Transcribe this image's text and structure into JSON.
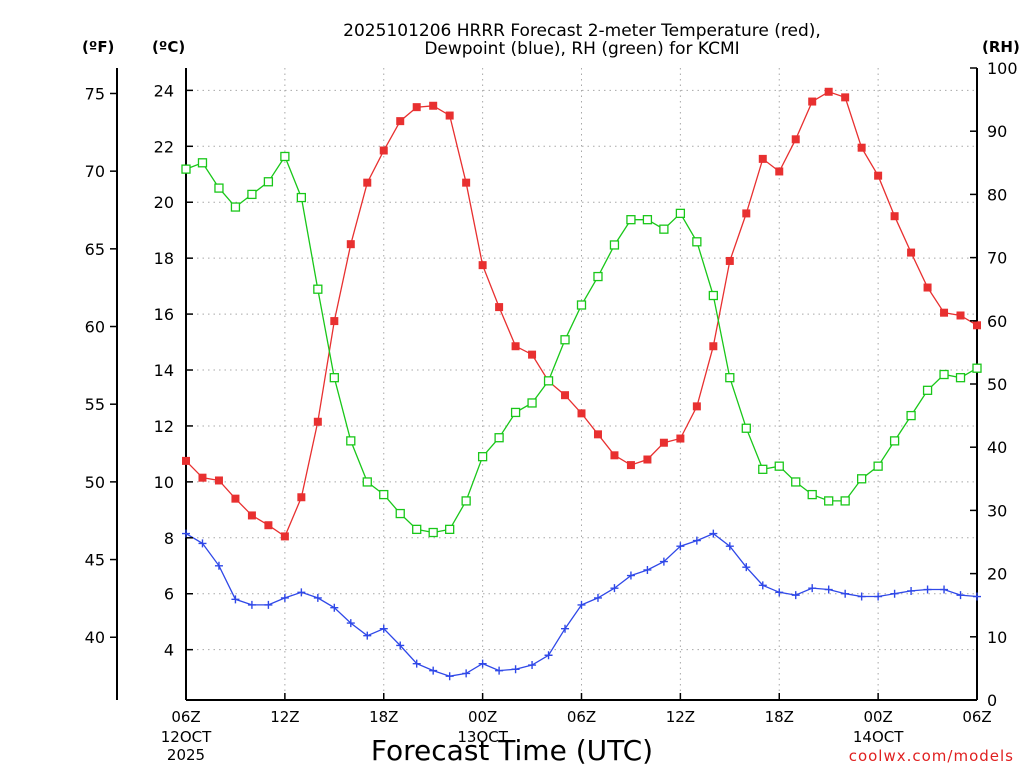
{
  "chart_data": {
    "type": "line",
    "title": [
      "2025101206 HRRR Forecast 2-meter Temperature (red),",
      "Dewpoint (blue), RH (green) for KCMI"
    ],
    "xlabel": "Forecast Time (UTC)",
    "watermark": "coolwx.com/models",
    "units": {
      "fahrenheit": "(ºF)",
      "celsius": "(ºC)",
      "rh": "(RH)"
    },
    "x_range_hours": [
      0,
      48
    ],
    "x_ticks": [
      {
        "hour": 0,
        "label": "06Z",
        "date_line1": "12OCT",
        "date_line2": "2025"
      },
      {
        "hour": 6,
        "label": "12Z"
      },
      {
        "hour": 12,
        "label": "18Z"
      },
      {
        "hour": 18,
        "label": "00Z",
        "date_line1": "13OCT"
      },
      {
        "hour": 24,
        "label": "06Z"
      },
      {
        "hour": 30,
        "label": "12Z"
      },
      {
        "hour": 36,
        "label": "18Z"
      },
      {
        "hour": 42,
        "label": "00Z",
        "date_line1": "14OCT"
      },
      {
        "hour": 48,
        "label": "06Z"
      }
    ],
    "y_celsius": {
      "range": [
        2.2,
        24.8
      ],
      "ticks": [
        4,
        6,
        8,
        10,
        12,
        14,
        16,
        18,
        20,
        22,
        24
      ]
    },
    "y_fahrenheit": {
      "ticks": [
        40,
        45,
        50,
        55,
        60,
        65,
        70,
        75
      ]
    },
    "y_rh": {
      "range": [
        0,
        100
      ],
      "ticks": [
        0,
        10,
        20,
        30,
        40,
        50,
        60,
        70,
        80,
        90,
        100
      ]
    },
    "grid": true,
    "series": [
      {
        "name": "2-meter Temperature",
        "unit": "C",
        "color": "#e83030",
        "marker": "filled-square",
        "values": [
          10.75,
          10.15,
          10.05,
          9.4,
          8.8,
          8.45,
          8.05,
          9.45,
          12.15,
          15.75,
          18.5,
          20.7,
          21.85,
          22.9,
          23.4,
          23.45,
          23.1,
          20.7,
          17.75,
          16.25,
          14.85,
          14.55,
          13.6,
          13.1,
          12.45,
          11.7,
          10.95,
          10.6,
          10.8,
          11.4,
          11.55,
          12.7,
          14.85,
          17.9,
          19.6,
          21.55,
          21.1,
          22.25,
          23.6,
          23.95,
          23.75,
          21.95,
          20.95,
          19.5,
          18.2,
          16.95,
          16.05,
          15.95,
          15.6
        ]
      },
      {
        "name": "Dewpoint",
        "unit": "C",
        "color": "#2f48e8",
        "marker": "plus",
        "values": [
          8.15,
          7.8,
          7.0,
          5.8,
          5.6,
          5.6,
          5.85,
          6.05,
          5.85,
          5.5,
          4.95,
          4.5,
          4.75,
          4.15,
          3.5,
          3.25,
          3.05,
          3.15,
          3.5,
          3.25,
          3.3,
          3.45,
          3.8,
          4.75,
          5.6,
          5.85,
          6.2,
          6.65,
          6.85,
          7.15,
          7.7,
          7.9,
          8.15,
          7.7,
          6.95,
          6.3,
          6.05,
          5.95,
          6.2,
          6.15,
          6.0,
          5.9,
          5.9,
          6.0,
          6.1,
          6.15,
          6.15,
          5.95,
          5.9
        ]
      },
      {
        "name": "Relative Humidity",
        "unit": "%",
        "color": "#19c719",
        "marker": "open-square",
        "values": [
          84,
          85,
          81,
          78,
          80,
          82,
          86,
          79.5,
          65,
          51,
          41,
          34.5,
          32.5,
          29.5,
          27,
          26.5,
          27,
          31.5,
          38.5,
          41.5,
          45.5,
          47,
          50.5,
          57,
          62.5,
          67,
          72,
          76,
          76,
          74.5,
          77,
          72.5,
          64,
          51,
          43,
          36.5,
          37,
          34.5,
          32.5,
          31.5,
          31.5,
          35,
          37,
          41,
          45,
          49,
          51.5,
          51,
          52.5
        ]
      }
    ]
  }
}
